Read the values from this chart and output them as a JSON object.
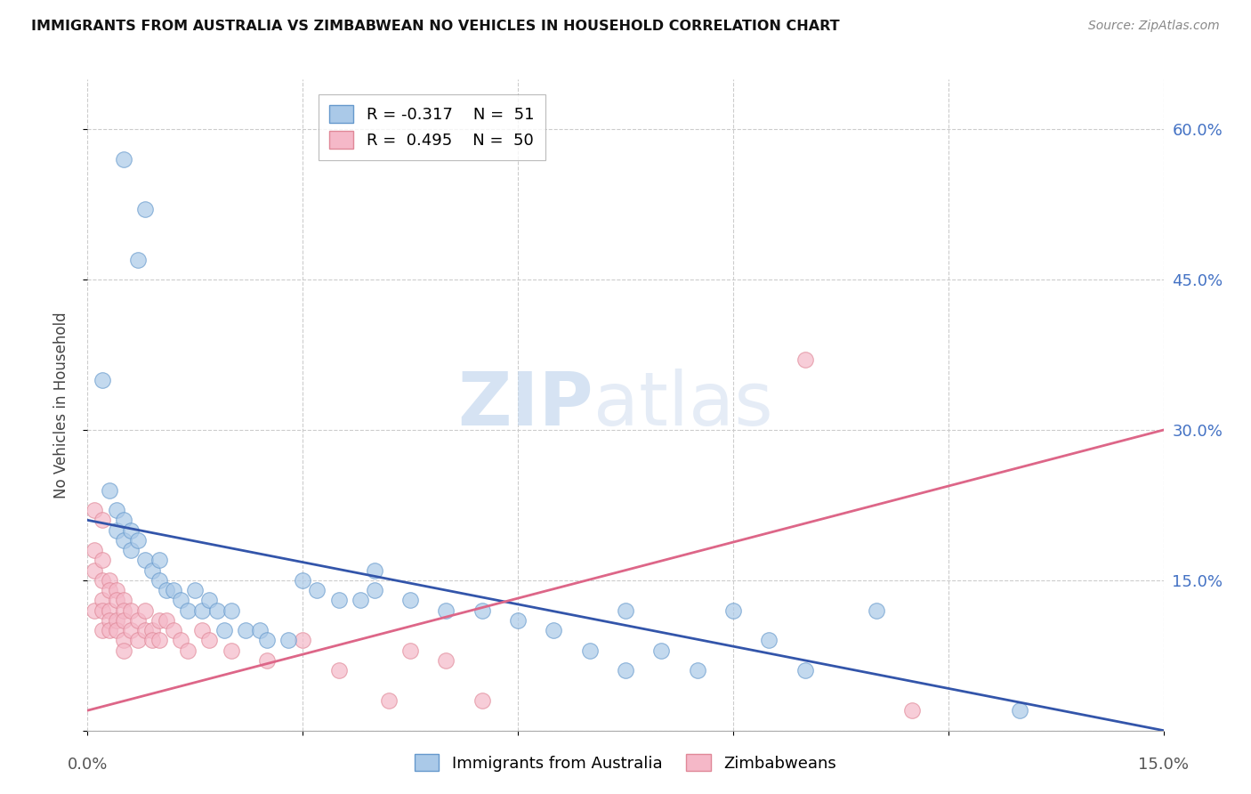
{
  "title": "IMMIGRANTS FROM AUSTRALIA VS ZIMBABWEAN NO VEHICLES IN HOUSEHOLD CORRELATION CHART",
  "source": "Source: ZipAtlas.com",
  "ylabel_left": "No Vehicles in Household",
  "xlim": [
    0.0,
    0.15
  ],
  "ylim": [
    0.0,
    0.65
  ],
  "x_ticks": [
    0.0,
    0.03,
    0.06,
    0.09,
    0.12,
    0.15
  ],
  "y_ticks_right": [
    0.0,
    0.15,
    0.3,
    0.45,
    0.6
  ],
  "y_tick_labels_right": [
    "",
    "15.0%",
    "30.0%",
    "45.0%",
    "60.0%"
  ],
  "grid_color": "#cccccc",
  "background_color": "#ffffff",
  "australia_color": "#aac9e8",
  "zimbabwe_color": "#f5b8c8",
  "australia_edge_color": "#6699cc",
  "zimbabwe_edge_color": "#e08898",
  "australia_line_color": "#3355aa",
  "zimbabwe_line_color": "#dd6688",
  "legend_australia_label": "R = -0.317    N =  51",
  "legend_zimbabwe_label": "R =  0.495    N =  50",
  "watermark_zip": "ZIP",
  "watermark_atlas": "atlas",
  "australia_trend_x": [
    0.0,
    0.15
  ],
  "australia_trend_y": [
    0.21,
    0.0
  ],
  "zimbabwe_trend_x": [
    0.0,
    0.15
  ],
  "zimbabwe_trend_y": [
    0.02,
    0.3
  ],
  "australia_scatter_x": [
    0.005,
    0.008,
    0.007,
    0.002,
    0.003,
    0.004,
    0.004,
    0.005,
    0.005,
    0.006,
    0.006,
    0.007,
    0.008,
    0.009,
    0.01,
    0.01,
    0.011,
    0.012,
    0.013,
    0.014,
    0.015,
    0.016,
    0.017,
    0.018,
    0.019,
    0.02,
    0.022,
    0.024,
    0.025,
    0.028,
    0.03,
    0.032,
    0.035,
    0.038,
    0.04,
    0.04,
    0.045,
    0.05,
    0.055,
    0.06,
    0.065,
    0.07,
    0.075,
    0.075,
    0.08,
    0.085,
    0.09,
    0.095,
    0.1,
    0.11,
    0.13
  ],
  "australia_scatter_y": [
    0.57,
    0.52,
    0.47,
    0.35,
    0.24,
    0.22,
    0.2,
    0.21,
    0.19,
    0.2,
    0.18,
    0.19,
    0.17,
    0.16,
    0.15,
    0.17,
    0.14,
    0.14,
    0.13,
    0.12,
    0.14,
    0.12,
    0.13,
    0.12,
    0.1,
    0.12,
    0.1,
    0.1,
    0.09,
    0.09,
    0.15,
    0.14,
    0.13,
    0.13,
    0.16,
    0.14,
    0.13,
    0.12,
    0.12,
    0.11,
    0.1,
    0.08,
    0.06,
    0.12,
    0.08,
    0.06,
    0.12,
    0.09,
    0.06,
    0.12,
    0.02
  ],
  "zimbabwe_scatter_x": [
    0.001,
    0.001,
    0.001,
    0.001,
    0.002,
    0.002,
    0.002,
    0.002,
    0.002,
    0.002,
    0.003,
    0.003,
    0.003,
    0.003,
    0.003,
    0.004,
    0.004,
    0.004,
    0.004,
    0.005,
    0.005,
    0.005,
    0.005,
    0.005,
    0.006,
    0.006,
    0.007,
    0.007,
    0.008,
    0.008,
    0.009,
    0.009,
    0.01,
    0.01,
    0.011,
    0.012,
    0.013,
    0.014,
    0.016,
    0.017,
    0.02,
    0.025,
    0.03,
    0.035,
    0.042,
    0.045,
    0.05,
    0.055,
    0.1,
    0.115
  ],
  "zimbabwe_scatter_y": [
    0.22,
    0.18,
    0.16,
    0.12,
    0.21,
    0.17,
    0.15,
    0.13,
    0.12,
    0.1,
    0.15,
    0.14,
    0.12,
    0.11,
    0.1,
    0.14,
    0.13,
    0.11,
    0.1,
    0.13,
    0.12,
    0.11,
    0.09,
    0.08,
    0.12,
    0.1,
    0.11,
    0.09,
    0.12,
    0.1,
    0.1,
    0.09,
    0.11,
    0.09,
    0.11,
    0.1,
    0.09,
    0.08,
    0.1,
    0.09,
    0.08,
    0.07,
    0.09,
    0.06,
    0.03,
    0.08,
    0.07,
    0.03,
    0.37,
    0.02
  ]
}
